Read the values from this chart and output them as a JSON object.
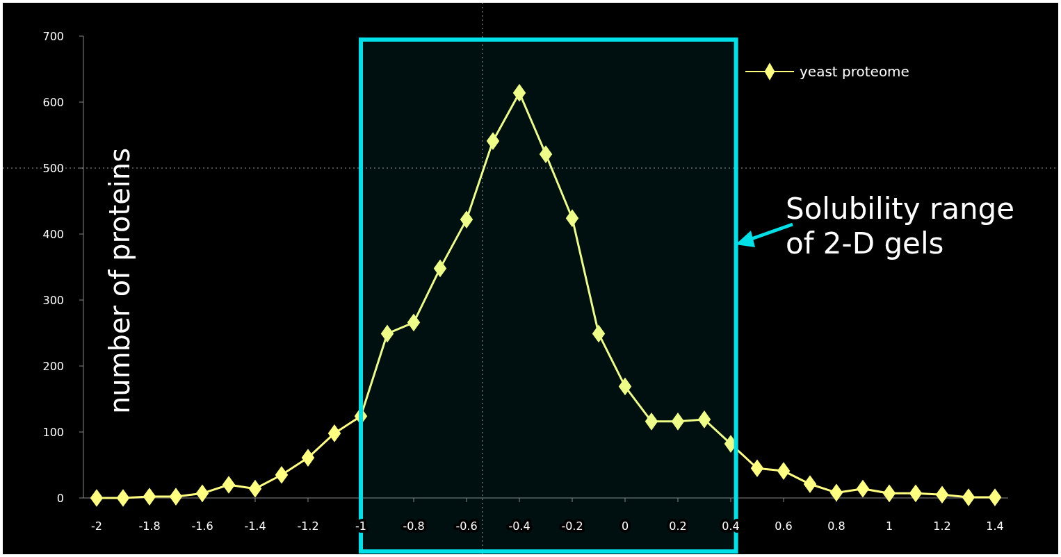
{
  "chart_data": {
    "type": "line",
    "ylabel": "number of proteins",
    "x": [
      -2,
      -1.9,
      -1.8,
      -1.7,
      -1.6,
      -1.5,
      -1.4,
      -1.3,
      -1.2,
      -1.1,
      -1,
      -0.9,
      -0.8,
      -0.7,
      -0.6,
      -0.5,
      -0.4,
      -0.3,
      -0.2,
      -0.1,
      0,
      0.1,
      0.2,
      0.3,
      0.4,
      0.5,
      0.6,
      0.7,
      0.8,
      0.9,
      1,
      1.1,
      1.2,
      1.3,
      1.4
    ],
    "series": [
      {
        "name": "yeast proteome",
        "color": "#ffff80",
        "values": [
          0,
          0,
          2,
          2,
          7,
          20,
          14,
          35,
          61,
          98,
          124,
          249,
          266,
          348,
          422,
          541,
          614,
          521,
          424,
          249,
          169,
          116,
          116,
          119,
          82,
          45,
          41,
          21,
          8,
          14,
          7,
          7,
          5,
          1,
          1
        ]
      }
    ],
    "xlim": [
      -2.05,
      1.45
    ],
    "ylim": [
      0,
      700
    ],
    "xticks": [
      -2,
      -1.8,
      -1.6,
      -1.4,
      -1.2,
      -1,
      -0.8,
      -0.6,
      -0.4,
      -0.2,
      0,
      0.2,
      0.4,
      0.6,
      0.8,
      1,
      1.2,
      1.4
    ],
    "yticks": [
      0,
      100,
      200,
      300,
      400,
      500,
      600,
      700
    ],
    "bands": [
      {
        "axis": "x",
        "from": -1,
        "to": 0.42,
        "label": "Solubility range\nof 2-D gels",
        "color": "#00e0e8"
      }
    ],
    "ref_lines": [
      {
        "axis": "y",
        "value": 500,
        "color": "#9a9a9a",
        "line_style": "dotted"
      },
      {
        "axis": "x",
        "value": -0.54,
        "color": "#9a9a9a",
        "line_style": "dotted"
      }
    ],
    "marker": "diamond",
    "legend": "top right",
    "grid": false
  }
}
